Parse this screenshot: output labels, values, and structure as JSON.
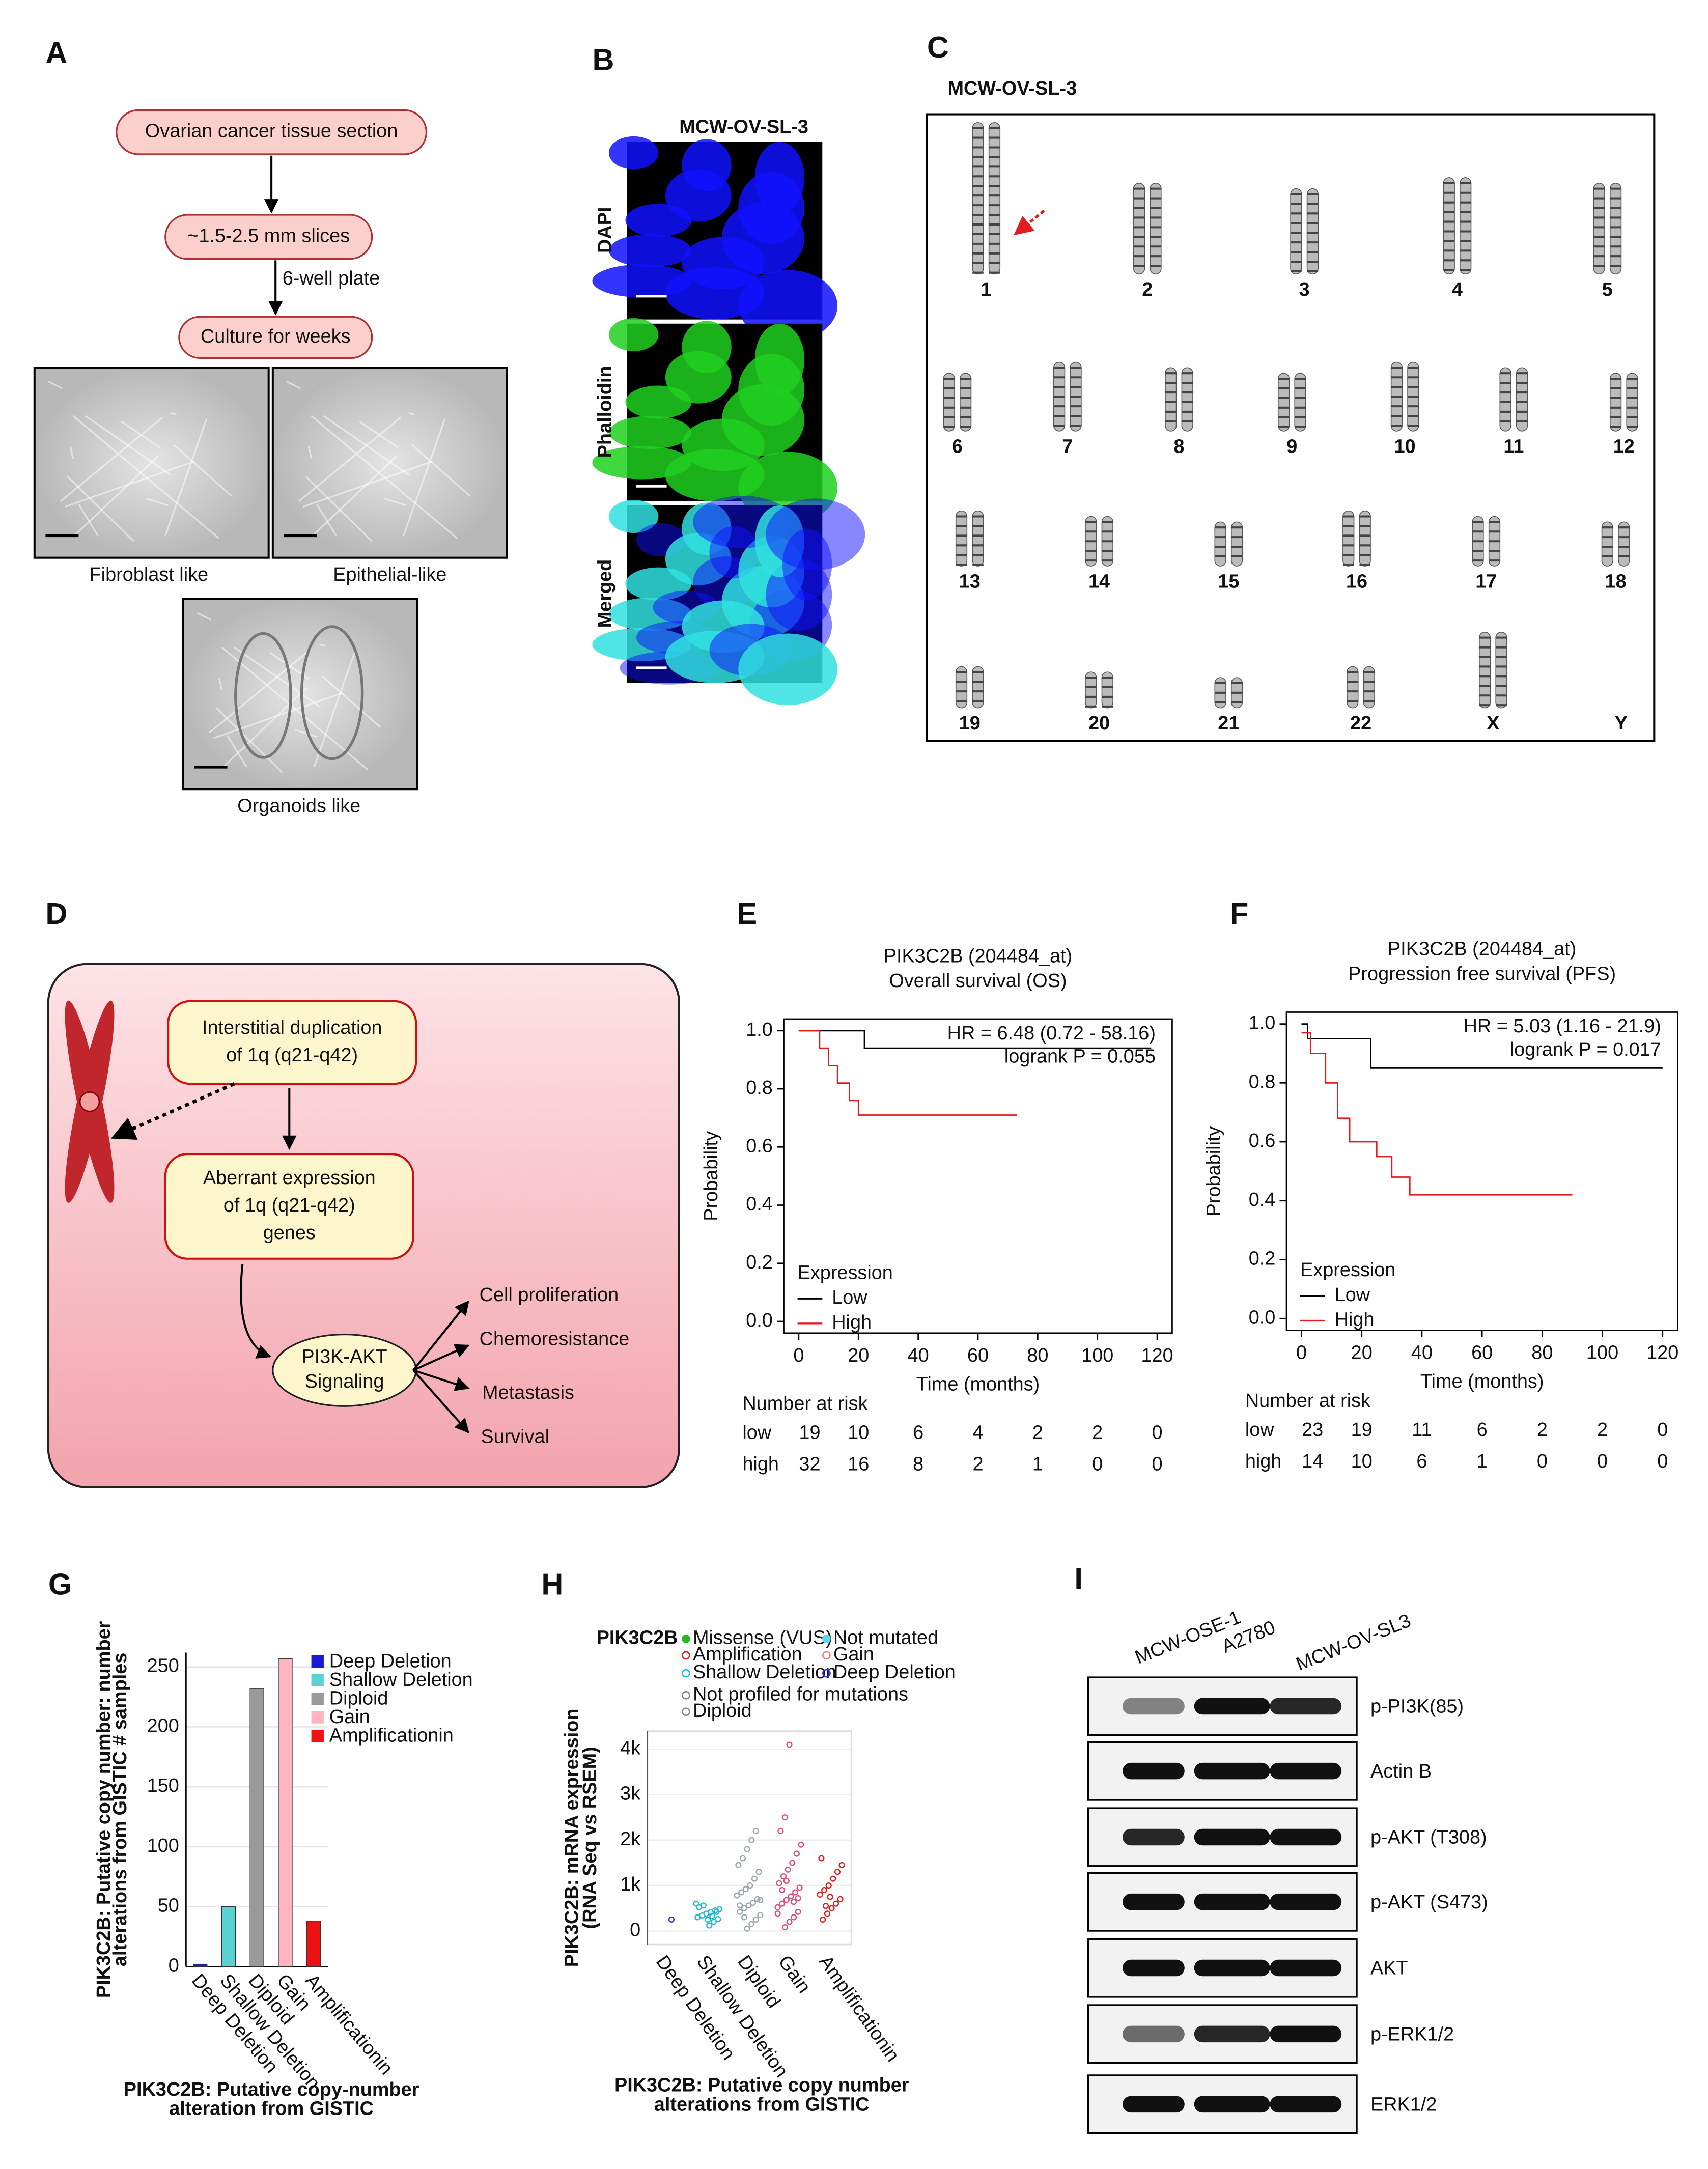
{
  "panels": {
    "A": {
      "label": "A",
      "nodes": [
        "Ovarian cancer tissue section",
        "~1.5-2.5 mm slices",
        "Culture for weeks"
      ],
      "edge_label": "6-well plate",
      "images": [
        "Fibroblast like",
        "Epithelial-like",
        "Organoids like"
      ]
    },
    "B": {
      "label": "B",
      "title": "MCW-OV-SL-3",
      "channels": [
        "DAPI",
        "Phalloidin",
        "Merged"
      ]
    },
    "C": {
      "label": "C",
      "title": "MCW-OV-SL-3",
      "chromosomes": [
        "1",
        "2",
        "3",
        "4",
        "5",
        "6",
        "7",
        "8",
        "9",
        "10",
        "11",
        "12",
        "13",
        "14",
        "15",
        "16",
        "17",
        "18",
        "19",
        "20",
        "21",
        "22",
        "X",
        "Y"
      ]
    },
    "D": {
      "label": "D",
      "nodes": [
        [
          "Interstitial duplication",
          "of 1q (q21-q42)"
        ],
        [
          "Aberrant expression",
          "of 1q (q21-q42)",
          "genes"
        ],
        [
          "PI3K-AKT",
          "Signaling"
        ]
      ],
      "outputs": [
        "Cell proliferation",
        "Chemoresistance",
        "Metastasis",
        "Survival"
      ]
    },
    "I": {
      "label": "I",
      "lanes": [
        "MCW-OSE-1",
        "A2780",
        "MCW-OV-SL3"
      ],
      "bands": [
        "p-PI3K(85)",
        "Actin B",
        "p-AKT (T308)",
        "p-AKT (S473)",
        "AKT",
        "p-ERK1/2",
        "ERK1/2"
      ]
    }
  },
  "chart_data": [
    {
      "type": "line",
      "label": "E",
      "title": "PIK3C2B (204484_at)",
      "subtitle": "Overall survival (OS)",
      "xlabel": "Time (months)",
      "ylabel": "Probability",
      "xlim": [
        -5,
        125
      ],
      "ylim": [
        -0.04,
        1.04
      ],
      "xticks": [
        0,
        20,
        40,
        60,
        80,
        100,
        120
      ],
      "yticks": [
        {
          "value": 0,
          "label": "0.0"
        },
        0.2,
        0.4,
        0.6,
        0.8,
        {
          "value": 1,
          "label": "1.0"
        }
      ],
      "annotations": [
        "HR = 6.48 (0.72 - 58.16)",
        "logrank P = 0.055"
      ],
      "legend_title": "Expression",
      "series": [
        {
          "name": "Low",
          "color": "#000000",
          "x": [
            0,
            22,
            22,
            118
          ],
          "values": [
            1,
            1,
            0.94,
            0.94
          ]
        },
        {
          "name": "High",
          "color": "#e41a1c",
          "x": [
            0,
            7,
            7,
            10,
            10,
            13,
            13,
            17,
            17,
            20,
            20,
            73
          ],
          "values": [
            1,
            1,
            0.94,
            0.94,
            0.88,
            0.88,
            0.82,
            0.82,
            0.76,
            0.76,
            0.71,
            0.71
          ]
        }
      ],
      "risk_title": "Number at risk",
      "risk_rows": [
        {
          "name": "low",
          "color": "#000000",
          "values": [
            19,
            10,
            6,
            4,
            2,
            2,
            0
          ]
        },
        {
          "name": "high",
          "color": "#e41a1c",
          "values": [
            32,
            16,
            8,
            2,
            1,
            0,
            0
          ]
        }
      ]
    },
    {
      "type": "line",
      "label": "F",
      "title": "PIK3C2B (204484_at)",
      "subtitle": "Progression free survival (PFS)",
      "xlabel": "Time (months)",
      "ylabel": "Probability",
      "xlim": [
        -5,
        125
      ],
      "ylim": [
        -0.04,
        1.04
      ],
      "xticks": [
        0,
        20,
        40,
        60,
        80,
        100,
        120
      ],
      "yticks": [
        {
          "value": 0,
          "label": "0.0"
        },
        0.2,
        0.4,
        0.6,
        0.8,
        {
          "value": 1,
          "label": "1.0"
        }
      ],
      "annotations": [
        "HR = 5.03 (1.16 - 21.9)",
        "logrank P = 0.017"
      ],
      "legend_title": "Expression",
      "series": [
        {
          "name": "Low",
          "color": "#000000",
          "x": [
            0,
            2,
            2,
            23,
            23,
            120
          ],
          "values": [
            1,
            1,
            0.95,
            0.95,
            0.85,
            0.85
          ]
        },
        {
          "name": "High",
          "color": "#e41a1c",
          "x": [
            0,
            3,
            3,
            8,
            8,
            12,
            12,
            16,
            16,
            25,
            25,
            30,
            30,
            36,
            36,
            90
          ],
          "values": [
            0.97,
            0.97,
            0.9,
            0.9,
            0.8,
            0.8,
            0.68,
            0.68,
            0.6,
            0.6,
            0.55,
            0.55,
            0.48,
            0.48,
            0.42,
            0.42
          ]
        }
      ],
      "risk_title": "Number at risk",
      "risk_rows": [
        {
          "name": "low",
          "color": "#000000",
          "values": [
            23,
            19,
            11,
            6,
            2,
            2,
            0
          ]
        },
        {
          "name": "high",
          "color": "#e41a1c",
          "values": [
            14,
            10,
            6,
            1,
            0,
            0,
            0
          ]
        }
      ]
    },
    {
      "type": "bar",
      "label": "G",
      "categories": [
        "Deep Deletion",
        "Shallow Deletion",
        "Diploid",
        "Gain",
        "Amplificationin"
      ],
      "values": [
        2,
        50,
        232,
        257,
        38
      ],
      "colors": [
        "#1a1ad0",
        "#5bd2d2",
        "#9a9a9a",
        "#ffb6c1",
        "#ee1111"
      ],
      "ylim": [
        0,
        262
      ],
      "yticks": [
        0,
        50,
        100,
        150,
        200,
        250
      ],
      "grid": true,
      "ylabel": [
        "PIK3C2B: Putative copy number: number",
        "alterations from GISTIC # samples"
      ],
      "xlabel": [
        "PIK3C2B: Putative copy-number",
        "alteration from GISTIC"
      ]
    },
    {
      "type": "scatter",
      "label": "H",
      "gene": "PIK3C2B",
      "categories": [
        "Deep Deletion",
        "Shallow Deletion",
        "Diploid",
        "Gain",
        "Amplificationin"
      ],
      "ylim": [
        -300,
        4400
      ],
      "yticks": [
        0,
        {
          "value": 1000,
          "label": "1k"
        },
        {
          "value": 2000,
          "label": "2k"
        },
        {
          "value": 3000,
          "label": "3k"
        },
        {
          "value": 4000,
          "label": "4k"
        }
      ],
      "grid": true,
      "ylabel": [
        "PIK3C2B: mRNA expression",
        "(RNA Seq vs RSEM)"
      ],
      "xlabel": [
        "PIK3C2B: Putative copy number",
        "alterations from GISTIC"
      ],
      "legend": [
        {
          "name": "Missense (VUS)",
          "color": "#22b822",
          "marker": "filled"
        },
        {
          "name": "Amplification",
          "color": "#e02020",
          "marker": "ring"
        },
        {
          "name": "Shallow Deletion",
          "color": "#20c0d0",
          "marker": "ring"
        },
        {
          "name": "Not profiled for mutations",
          "color": "#888888",
          "marker": "ring"
        },
        {
          "name": "Diploid",
          "color": "#888888",
          "marker": "ring"
        },
        {
          "name": "Not mutated",
          "color": "#60d8e8",
          "marker": "filled"
        },
        {
          "name": "Gain",
          "color": "#f08080",
          "marker": "ring"
        },
        {
          "name": "Deep Deletion",
          "color": "#3333cc",
          "marker": "ring"
        }
      ],
      "series": [
        {
          "color": "#3333cc",
          "values": [
            250
          ]
        },
        {
          "color": "#20c0d0",
          "values": [
            120,
            200,
            260,
            300,
            340,
            380,
            410,
            450,
            480,
            520,
            560,
            250,
            330,
            420,
            600
          ]
        },
        {
          "color": "#9aa8b0",
          "values": [
            50,
            150,
            250,
            350,
            420,
            500,
            560,
            620,
            700,
            780,
            850,
            920,
            1000,
            1150,
            1300,
            1450,
            1600,
            1800,
            2000,
            2200,
            680,
            560,
            300
          ]
        },
        {
          "color": "#e0507a",
          "values": [
            80,
            200,
            300,
            420,
            520,
            600,
            680,
            760,
            850,
            950,
            1050,
            1200,
            1350,
            1500,
            1700,
            1900,
            2200,
            2500,
            4100,
            640,
            720,
            380,
            900,
            1100
          ]
        },
        {
          "color": "#e02020",
          "values": [
            250,
            380,
            500,
            600,
            700,
            800,
            900,
            1000,
            1150,
            1300,
            1450,
            1600,
            550,
            750
          ]
        }
      ]
    }
  ]
}
